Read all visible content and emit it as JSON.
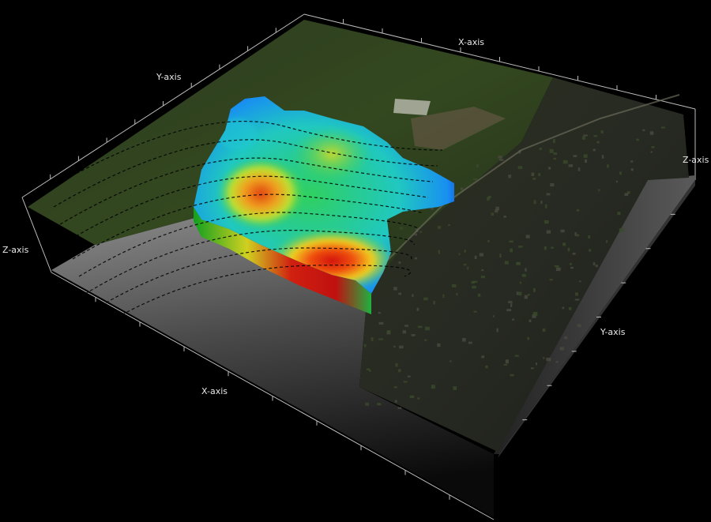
{
  "chart_data": {
    "type": "surface",
    "title": "",
    "axes": {
      "x_label": "X-axis",
      "y_label": "Y-axis",
      "z_label": "Z-axis"
    },
    "background": "aerial photograph texture",
    "colormap": [
      "#1030e0",
      "#10c8f0",
      "#20d040",
      "#f0e020",
      "#f06010",
      "#d01010"
    ],
    "contours": "dashed black",
    "grid": false,
    "legend": "none"
  }
}
